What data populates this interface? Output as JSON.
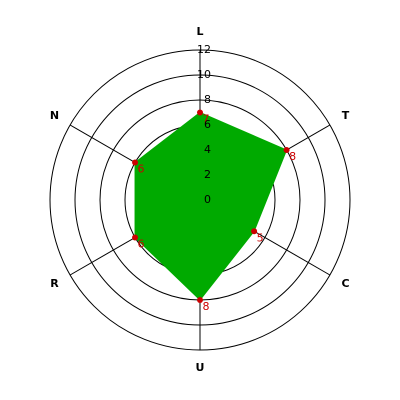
{
  "chart_data": {
    "type": "radar",
    "categories": [
      "L",
      "T",
      "C",
      "U",
      "R",
      "N"
    ],
    "series": [
      {
        "color": "#00aa00",
        "values": [
          7,
          8,
          5,
          8,
          6,
          6
        ]
      }
    ],
    "value_color": "#cc0000",
    "ylim": [
      0,
      12
    ],
    "yticks": [
      0,
      2,
      4,
      6,
      8,
      10,
      12
    ],
    "grid": true
  }
}
